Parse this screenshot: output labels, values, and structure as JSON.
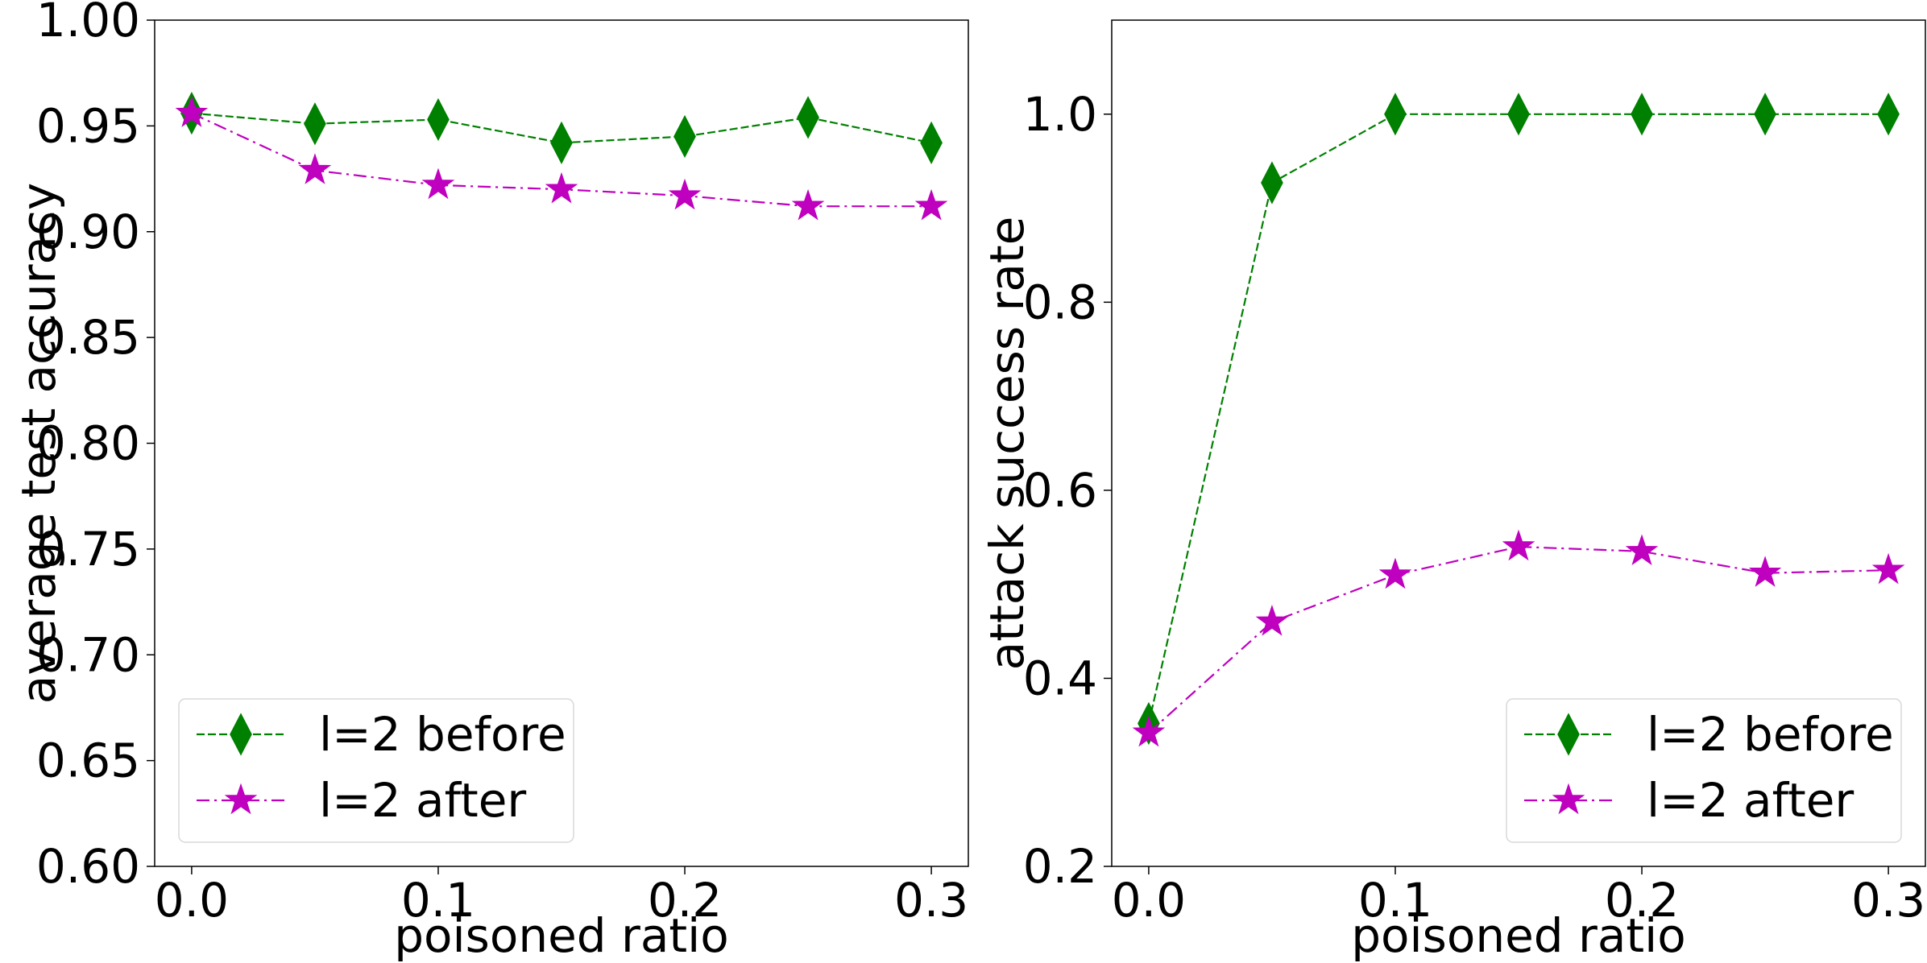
{
  "chart_data": [
    {
      "type": "line",
      "xlabel": "poisoned ratio",
      "ylabel": "average test accuracy",
      "xlim": [
        -0.015,
        0.315
      ],
      "ylim": [
        0.6,
        1.0
      ],
      "xticks": [
        0.0,
        0.1,
        0.2,
        0.3
      ],
      "xtick_labels": [
        "0.0",
        "0.1",
        "0.2",
        "0.3"
      ],
      "yticks": [
        0.6,
        0.65,
        0.7,
        0.75,
        0.8,
        0.85,
        0.9,
        0.95,
        1.0
      ],
      "ytick_labels": [
        "0.60",
        "0.65",
        "0.70",
        "0.75",
        "0.80",
        "0.85",
        "0.90",
        "0.95",
        "1.00"
      ],
      "grid": false,
      "legend_position": "lower-left",
      "x": [
        0.0,
        0.05,
        0.1,
        0.15,
        0.2,
        0.25,
        0.3
      ],
      "series": [
        {
          "name": "l=2 before",
          "color": "#008000",
          "marker": "diamond",
          "linestyle": "dashed",
          "values": [
            0.956,
            0.951,
            0.953,
            0.942,
            0.945,
            0.954,
            0.942
          ]
        },
        {
          "name": "l=2 after",
          "color": "#bf00bf",
          "marker": "star",
          "linestyle": "dashdot",
          "values": [
            0.956,
            0.929,
            0.922,
            0.92,
            0.917,
            0.912,
            0.912
          ]
        }
      ]
    },
    {
      "type": "line",
      "xlabel": "poisoned ratio",
      "ylabel": "attack success rate",
      "xlim": [
        -0.015,
        0.315
      ],
      "ylim": [
        0.2,
        1.1
      ],
      "xticks": [
        0.0,
        0.1,
        0.2,
        0.3
      ],
      "xtick_labels": [
        "0.0",
        "0.1",
        "0.2",
        "0.3"
      ],
      "yticks": [
        0.2,
        0.4,
        0.6,
        0.8,
        1.0
      ],
      "ytick_labels": [
        "0.2",
        "0.4",
        "0.6",
        "0.8",
        "1.0"
      ],
      "grid": false,
      "legend_position": "lower-right",
      "x": [
        0.0,
        0.05,
        0.1,
        0.15,
        0.2,
        0.25,
        0.3
      ],
      "series": [
        {
          "name": "l=2 before",
          "color": "#008000",
          "marker": "diamond",
          "linestyle": "dashed",
          "values": [
            0.352,
            0.927,
            1.0,
            1.0,
            1.0,
            1.0,
            1.0
          ]
        },
        {
          "name": "l=2 after",
          "color": "#bf00bf",
          "marker": "star",
          "linestyle": "dashdot",
          "values": [
            0.342,
            0.46,
            0.51,
            0.54,
            0.535,
            0.512,
            0.515
          ]
        }
      ]
    }
  ]
}
